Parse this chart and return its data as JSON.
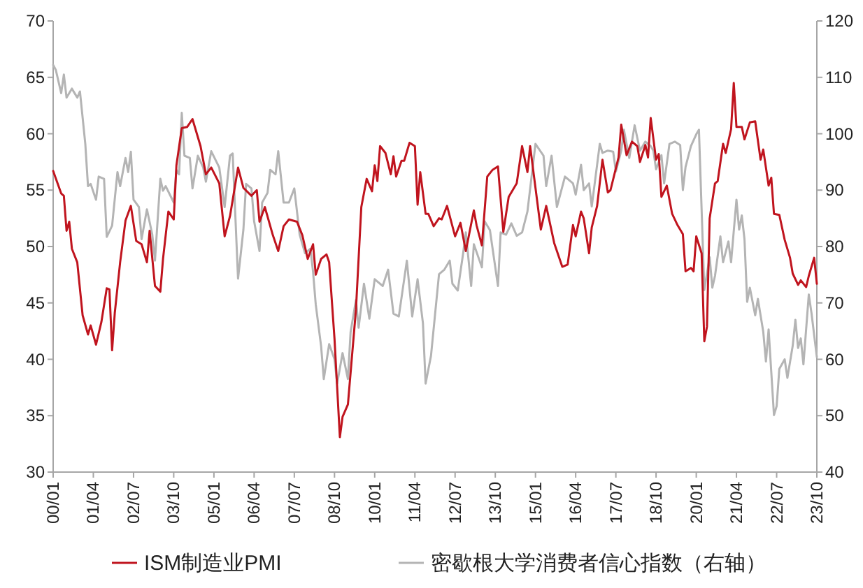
{
  "chart_data": {
    "type": "line",
    "legend": "bottom",
    "xlim": [
      "2000-01",
      "2023-10"
    ],
    "xticks": [
      {
        "value": "2000-01",
        "label": "00/01"
      },
      {
        "value": "2001-04",
        "label": "01/04"
      },
      {
        "value": "2002-07",
        "label": "02/07"
      },
      {
        "value": "2003-10",
        "label": "03/10"
      },
      {
        "value": "2005-01",
        "label": "05/01"
      },
      {
        "value": "2006-04",
        "label": "06/04"
      },
      {
        "value": "2007-07",
        "label": "07/07"
      },
      {
        "value": "2008-10",
        "label": "08/10"
      },
      {
        "value": "2010-01",
        "label": "10/01"
      },
      {
        "value": "2011-04",
        "label": "11/04"
      },
      {
        "value": "2012-07",
        "label": "12/07"
      },
      {
        "value": "2013-10",
        "label": "13/10"
      },
      {
        "value": "2015-01",
        "label": "15/01"
      },
      {
        "value": "2016-04",
        "label": "16/04"
      },
      {
        "value": "2017-07",
        "label": "17/07"
      },
      {
        "value": "2018-10",
        "label": "18/10"
      },
      {
        "value": "2020-01",
        "label": "20/01"
      },
      {
        "value": "2021-04",
        "label": "21/04"
      },
      {
        "value": "2022-07",
        "label": "22/07"
      },
      {
        "value": "2023-10",
        "label": "23/10"
      }
    ],
    "ylim": [
      30,
      70
    ],
    "yticks": [
      30,
      35,
      40,
      45,
      50,
      55,
      60,
      65,
      70
    ],
    "y2lim": [
      40,
      120
    ],
    "y2ticks": [
      40,
      50,
      60,
      70,
      80,
      90,
      100,
      110,
      120
    ],
    "series": [
      {
        "name": "ISM制造业PMI",
        "color": "#c0141e",
        "x": [
          "2000-01",
          "2000-04",
          "2000-05",
          "2000-06",
          "2000-07",
          "2000-08",
          "2000-10",
          "2000-12",
          "2001-02",
          "2001-03",
          "2001-05",
          "2001-07",
          "2001-09",
          "2001-10",
          "2001-11",
          "2001-12",
          "2002-02",
          "2002-04",
          "2002-06",
          "2002-08",
          "2002-10",
          "2002-12",
          "2003-01",
          "2003-03",
          "2003-05",
          "2003-06",
          "2003-08",
          "2003-10",
          "2003-11",
          "2004-01",
          "2004-03",
          "2004-05",
          "2004-08",
          "2004-10",
          "2004-12",
          "2005-03",
          "2005-05",
          "2005-07",
          "2005-10",
          "2005-12",
          "2006-03",
          "2006-05",
          "2006-06",
          "2006-08",
          "2006-11",
          "2007-01",
          "2007-03",
          "2007-05",
          "2007-08",
          "2007-10",
          "2007-12",
          "2008-02",
          "2008-03",
          "2008-05",
          "2008-07",
          "2008-08",
          "2008-10",
          "2008-12",
          "2009-01",
          "2009-03",
          "2009-06",
          "2009-08",
          "2009-10",
          "2009-12",
          "2010-01",
          "2010-02",
          "2010-03",
          "2010-05",
          "2010-07",
          "2010-08",
          "2010-09",
          "2010-11",
          "2010-12",
          "2011-02",
          "2011-04",
          "2011-05",
          "2011-06",
          "2011-08",
          "2011-09",
          "2011-11",
          "2012-01",
          "2012-02",
          "2012-04",
          "2012-07",
          "2012-09",
          "2012-11",
          "2013-02",
          "2013-03",
          "2013-05",
          "2013-07",
          "2013-09",
          "2013-11",
          "2014-01",
          "2014-03",
          "2014-06",
          "2014-08",
          "2014-10",
          "2014-11",
          "2015-01",
          "2015-03",
          "2015-05",
          "2015-08",
          "2015-11",
          "2016-01",
          "2016-03",
          "2016-04",
          "2016-06",
          "2016-07",
          "2016-09",
          "2016-10",
          "2016-12",
          "2017-02",
          "2017-04",
          "2017-05",
          "2017-08",
          "2017-09",
          "2017-11",
          "2018-01",
          "2018-03",
          "2018-04",
          "2018-06",
          "2018-07",
          "2018-08",
          "2018-10",
          "2018-11",
          "2018-12",
          "2019-02",
          "2019-04",
          "2019-06",
          "2019-08",
          "2019-09",
          "2019-11",
          "2019-12",
          "2020-01",
          "2020-03",
          "2020-04",
          "2020-05",
          "2020-06",
          "2020-08",
          "2020-09",
          "2020-11",
          "2020-12",
          "2021-02",
          "2021-03",
          "2021-04",
          "2021-06",
          "2021-07",
          "2021-09",
          "2021-11",
          "2022-01",
          "2022-02",
          "2022-04",
          "2022-05",
          "2022-06",
          "2022-08",
          "2022-10",
          "2022-12",
          "2023-01",
          "2023-03",
          "2023-04",
          "2023-06",
          "2023-07",
          "2023-09",
          "2023-10"
        ],
        "values": [
          56.7,
          54.7,
          54.5,
          51.4,
          52.2,
          49.8,
          48.6,
          43.9,
          42.2,
          43.0,
          41.3,
          43.3,
          46.3,
          46.2,
          40.8,
          44.1,
          48.6,
          52.3,
          53.6,
          50.5,
          50.2,
          48.6,
          51.4,
          46.5,
          46.0,
          48.9,
          53.1,
          52.4,
          57.2,
          60.5,
          60.6,
          61.3,
          58.9,
          56.4,
          57.0,
          55.6,
          50.9,
          52.7,
          57.0,
          55.2,
          54.5,
          55.0,
          52.2,
          53.5,
          51.0,
          49.6,
          51.8,
          52.4,
          52.2,
          51.0,
          48.9,
          50.2,
          47.5,
          48.9,
          49.3,
          48.6,
          41.8,
          33.1,
          34.9,
          36.0,
          44.4,
          53.5,
          56.0,
          54.9,
          57.2,
          55.8,
          58.9,
          58.3,
          56.4,
          58.0,
          56.2,
          57.6,
          57.6,
          59.2,
          58.9,
          53.7,
          56.6,
          52.9,
          52.9,
          51.8,
          52.5,
          52.4,
          53.6,
          50.9,
          52.1,
          49.6,
          53.2,
          51.9,
          50.1,
          56.2,
          56.8,
          57.1,
          51.3,
          54.4,
          55.6,
          58.9,
          56.6,
          58.9,
          55.2,
          51.5,
          53.6,
          50.3,
          48.2,
          48.4,
          51.9,
          50.9,
          53.1,
          52.5,
          49.4,
          51.7,
          53.6,
          57.7,
          54.8,
          55.0,
          57.9,
          60.8,
          58.1,
          59.3,
          58.9,
          57.5,
          59.0,
          57.9,
          61.4,
          57.7,
          58.2,
          54.4,
          55.4,
          52.9,
          51.9,
          51.1,
          47.8,
          48.1,
          47.8,
          50.9,
          49.4,
          41.6,
          42.9,
          52.5,
          55.6,
          55.8,
          59.1,
          58.3,
          60.4,
          64.5,
          60.6,
          60.6,
          59.5,
          61.0,
          61.1,
          57.7,
          58.6,
          55.4,
          56.1,
          52.9,
          52.8,
          50.6,
          49.0,
          47.6,
          46.6,
          47.0,
          46.4,
          47.4,
          49.0,
          46.7
        ]
      },
      {
        "name": "密歇根大学消费者信心指数（右轴）",
        "color": "#b4b4b4",
        "axis": "y2",
        "x": [
          "2000-01",
          "2000-02",
          "2000-04",
          "2000-05",
          "2000-06",
          "2000-08",
          "2000-09",
          "2000-10",
          "2000-11",
          "2001-01",
          "2001-02",
          "2001-03",
          "2001-05",
          "2001-06",
          "2001-08",
          "2001-09",
          "2001-11",
          "2002-01",
          "2002-02",
          "2002-04",
          "2002-05",
          "2002-06",
          "2002-07",
          "2002-09",
          "2002-10",
          "2002-12",
          "2003-02",
          "2003-03",
          "2003-05",
          "2003-06",
          "2003-07",
          "2003-10",
          "2003-11",
          "2003-12",
          "2004-01",
          "2004-02",
          "2004-04",
          "2004-05",
          "2004-07",
          "2004-09",
          "2004-10",
          "2004-12",
          "2005-03",
          "2005-05",
          "2005-07",
          "2005-08",
          "2005-09",
          "2005-10",
          "2005-12",
          "2006-01",
          "2006-03",
          "2006-04",
          "2006-06",
          "2006-07",
          "2006-09",
          "2006-10",
          "2006-12",
          "2007-01",
          "2007-03",
          "2007-05",
          "2007-07",
          "2007-09",
          "2007-11",
          "2008-01",
          "2008-02",
          "2008-03",
          "2008-05",
          "2008-06",
          "2008-08",
          "2008-10",
          "2008-11",
          "2009-01",
          "2009-03",
          "2009-04",
          "2009-06",
          "2009-07",
          "2009-09",
          "2009-11",
          "2010-01",
          "2010-02",
          "2010-04",
          "2010-06",
          "2010-08",
          "2010-10",
          "2010-12",
          "2011-01",
          "2011-03",
          "2011-05",
          "2011-07",
          "2011-08",
          "2011-10",
          "2012-01",
          "2012-03",
          "2012-05",
          "2012-06",
          "2012-08",
          "2012-10",
          "2012-11",
          "2013-01",
          "2013-02",
          "2013-05",
          "2013-06",
          "2013-08",
          "2013-11",
          "2013-12",
          "2014-02",
          "2014-04",
          "2014-06",
          "2014-08",
          "2014-10",
          "2015-01",
          "2015-04",
          "2015-05",
          "2015-07",
          "2015-09",
          "2015-12",
          "2016-03",
          "2016-04",
          "2016-06",
          "2016-07",
          "2016-09",
          "2016-10",
          "2017-01",
          "2017-02",
          "2017-04",
          "2017-06",
          "2017-07",
          "2017-09",
          "2017-10",
          "2017-12",
          "2018-02",
          "2018-04",
          "2018-06",
          "2018-08",
          "2018-09",
          "2018-10",
          "2018-12",
          "2019-01",
          "2019-03",
          "2019-05",
          "2019-07",
          "2019-08",
          "2019-09",
          "2019-11",
          "2020-01",
          "2020-02",
          "2020-04",
          "2020-06",
          "2020-07",
          "2020-08",
          "2020-10",
          "2020-11",
          "2021-01",
          "2021-02",
          "2021-04",
          "2021-05",
          "2021-06",
          "2021-07",
          "2021-08",
          "2021-09",
          "2021-11",
          "2021-12",
          "2022-02",
          "2022-03",
          "2022-04",
          "2022-06",
          "2022-07",
          "2022-08",
          "2022-10",
          "2022-11",
          "2023-01",
          "2023-02",
          "2023-03",
          "2023-04",
          "2023-05",
          "2023-07",
          "2023-08",
          "2023-10"
        ],
        "values": [
          112.2,
          111.3,
          107.2,
          110.5,
          106.4,
          108.0,
          107.2,
          106.4,
          107.5,
          98.2,
          90.7,
          91.1,
          88.3,
          92.4,
          92.0,
          81.7,
          83.7,
          93.2,
          90.7,
          95.7,
          93.2,
          96.8,
          88.3,
          87.0,
          81.3,
          86.6,
          82.1,
          77.5,
          92.0,
          89.9,
          90.7,
          87.8,
          93.6,
          92.8,
          103.7,
          96.1,
          95.7,
          90.3,
          96.1,
          94.0,
          91.5,
          96.9,
          94.0,
          87.0,
          96.1,
          96.5,
          85.4,
          74.3,
          83.0,
          91.1,
          90.3,
          84.5,
          79.2,
          87.8,
          89.5,
          93.6,
          92.8,
          96.9,
          87.8,
          87.8,
          90.3,
          82.1,
          78.8,
          79.6,
          75.5,
          69.7,
          62.3,
          56.5,
          62.7,
          60.0,
          55.7,
          61.1,
          56.5,
          64.8,
          70.5,
          65.6,
          73.4,
          67.2,
          74.2,
          73.8,
          73.0,
          75.9,
          68.1,
          67.6,
          74.2,
          77.5,
          67.6,
          74.2,
          66.4,
          55.7,
          60.6,
          75.1,
          75.9,
          77.5,
          73.4,
          72.2,
          78.8,
          82.5,
          73.0,
          80.4,
          76.3,
          84.5,
          82.9,
          73.0,
          82.5,
          82.1,
          84.1,
          81.9,
          82.5,
          86.2,
          98.2,
          96.1,
          90.7,
          96.1,
          87.0,
          92.4,
          91.2,
          89.2,
          94.5,
          90.0,
          91.2,
          87.1,
          98.2,
          96.6,
          97.0,
          96.8,
          93.3,
          97.0,
          100.7,
          95.7,
          101.5,
          97.0,
          98.6,
          97.8,
          97.0,
          93.7,
          96.2,
          91.2,
          98.2,
          98.6,
          98.0,
          90.0,
          94.1,
          97.8,
          99.9,
          100.7,
          72.3,
          78.1,
          72.7,
          74.8,
          81.8,
          77.2,
          80.9,
          77.2,
          88.3,
          83.0,
          85.5,
          81.3,
          70.2,
          72.7,
          67.8,
          70.7,
          64.9,
          59.6,
          65.3,
          50.1,
          51.7,
          58.3,
          60.0,
          56.7,
          62.4,
          67.0,
          62.0,
          63.7,
          59.1,
          71.5,
          68.2,
          60.4
        ]
      }
    ]
  }
}
